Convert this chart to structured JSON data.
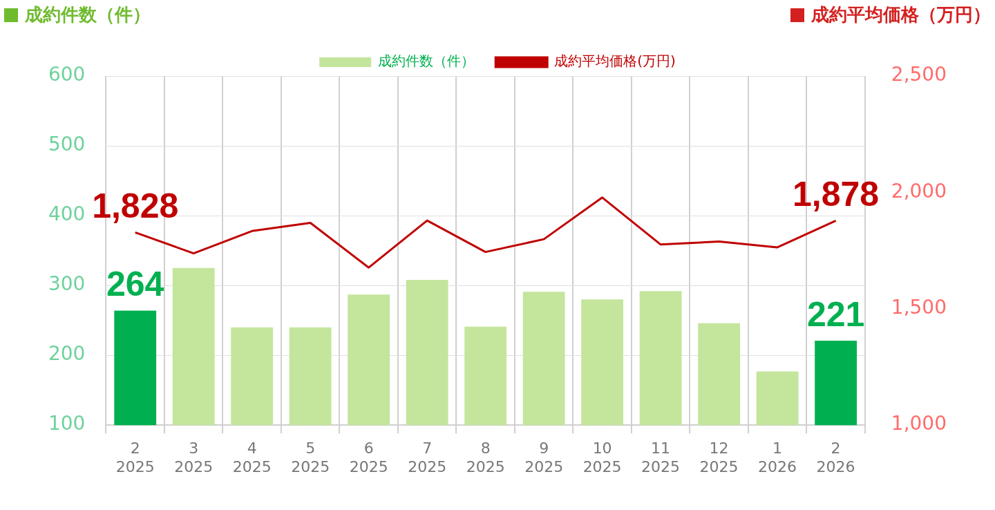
{
  "chart_data": {
    "type": "bar",
    "ylabel": "成約件数（件）",
    "y2label": "成約平均価格（万円）",
    "categories": [
      "2\n2025",
      "3\n2025",
      "4\n2025",
      "5\n2025",
      "6\n2025",
      "7\n2025",
      "8\n2025",
      "9\n2025",
      "10\n2025",
      "11\n2025",
      "12\n2025",
      "1\n2026",
      "2\n2026"
    ],
    "series": [
      {
        "name": "成約件数（件）",
        "color": "#c4e59c",
        "colors": [
          "#00b050",
          "#c4e59c",
          "#c4e59c",
          "#c4e59c",
          "#c4e59c",
          "#c4e59c",
          "#c4e59c",
          "#c4e59c",
          "#c4e59c",
          "#c4e59c",
          "#c4e59c",
          "#c4e59c",
          "#00b050"
        ],
        "values": [
          264,
          325,
          240,
          240,
          287,
          308,
          241,
          291,
          280,
          292,
          246,
          177,
          221
        ],
        "value_labels": [
          "264",
          null,
          null,
          null,
          null,
          null,
          null,
          null,
          null,
          null,
          null,
          null,
          "221"
        ]
      },
      {
        "name": "成約平均価格(万円)",
        "type": "line",
        "axis": "y2",
        "color": "#c00000",
        "values": [
          1828,
          1738,
          1834,
          1869,
          1677,
          1879,
          1744,
          1799,
          1978,
          1776,
          1789,
          1764,
          1878
        ],
        "value_labels": [
          "1,828",
          null,
          null,
          null,
          null,
          null,
          null,
          null,
          null,
          null,
          null,
          null,
          "1,878"
        ]
      }
    ],
    "ylim": [
      100,
      600
    ],
    "yticks": [
      100,
      200,
      300,
      400,
      500,
      600
    ],
    "y2lim": [
      1000,
      2500
    ],
    "y2ticks": [
      {
        "value": 1000,
        "label": "1,000"
      },
      {
        "value": 1500,
        "label": "1,500"
      },
      {
        "value": 2000,
        "label": "2,000"
      },
      {
        "value": 2500,
        "label": "2,500"
      }
    ],
    "grid": true,
    "legend": "top",
    "marker": "none",
    "line_style": "solid"
  }
}
